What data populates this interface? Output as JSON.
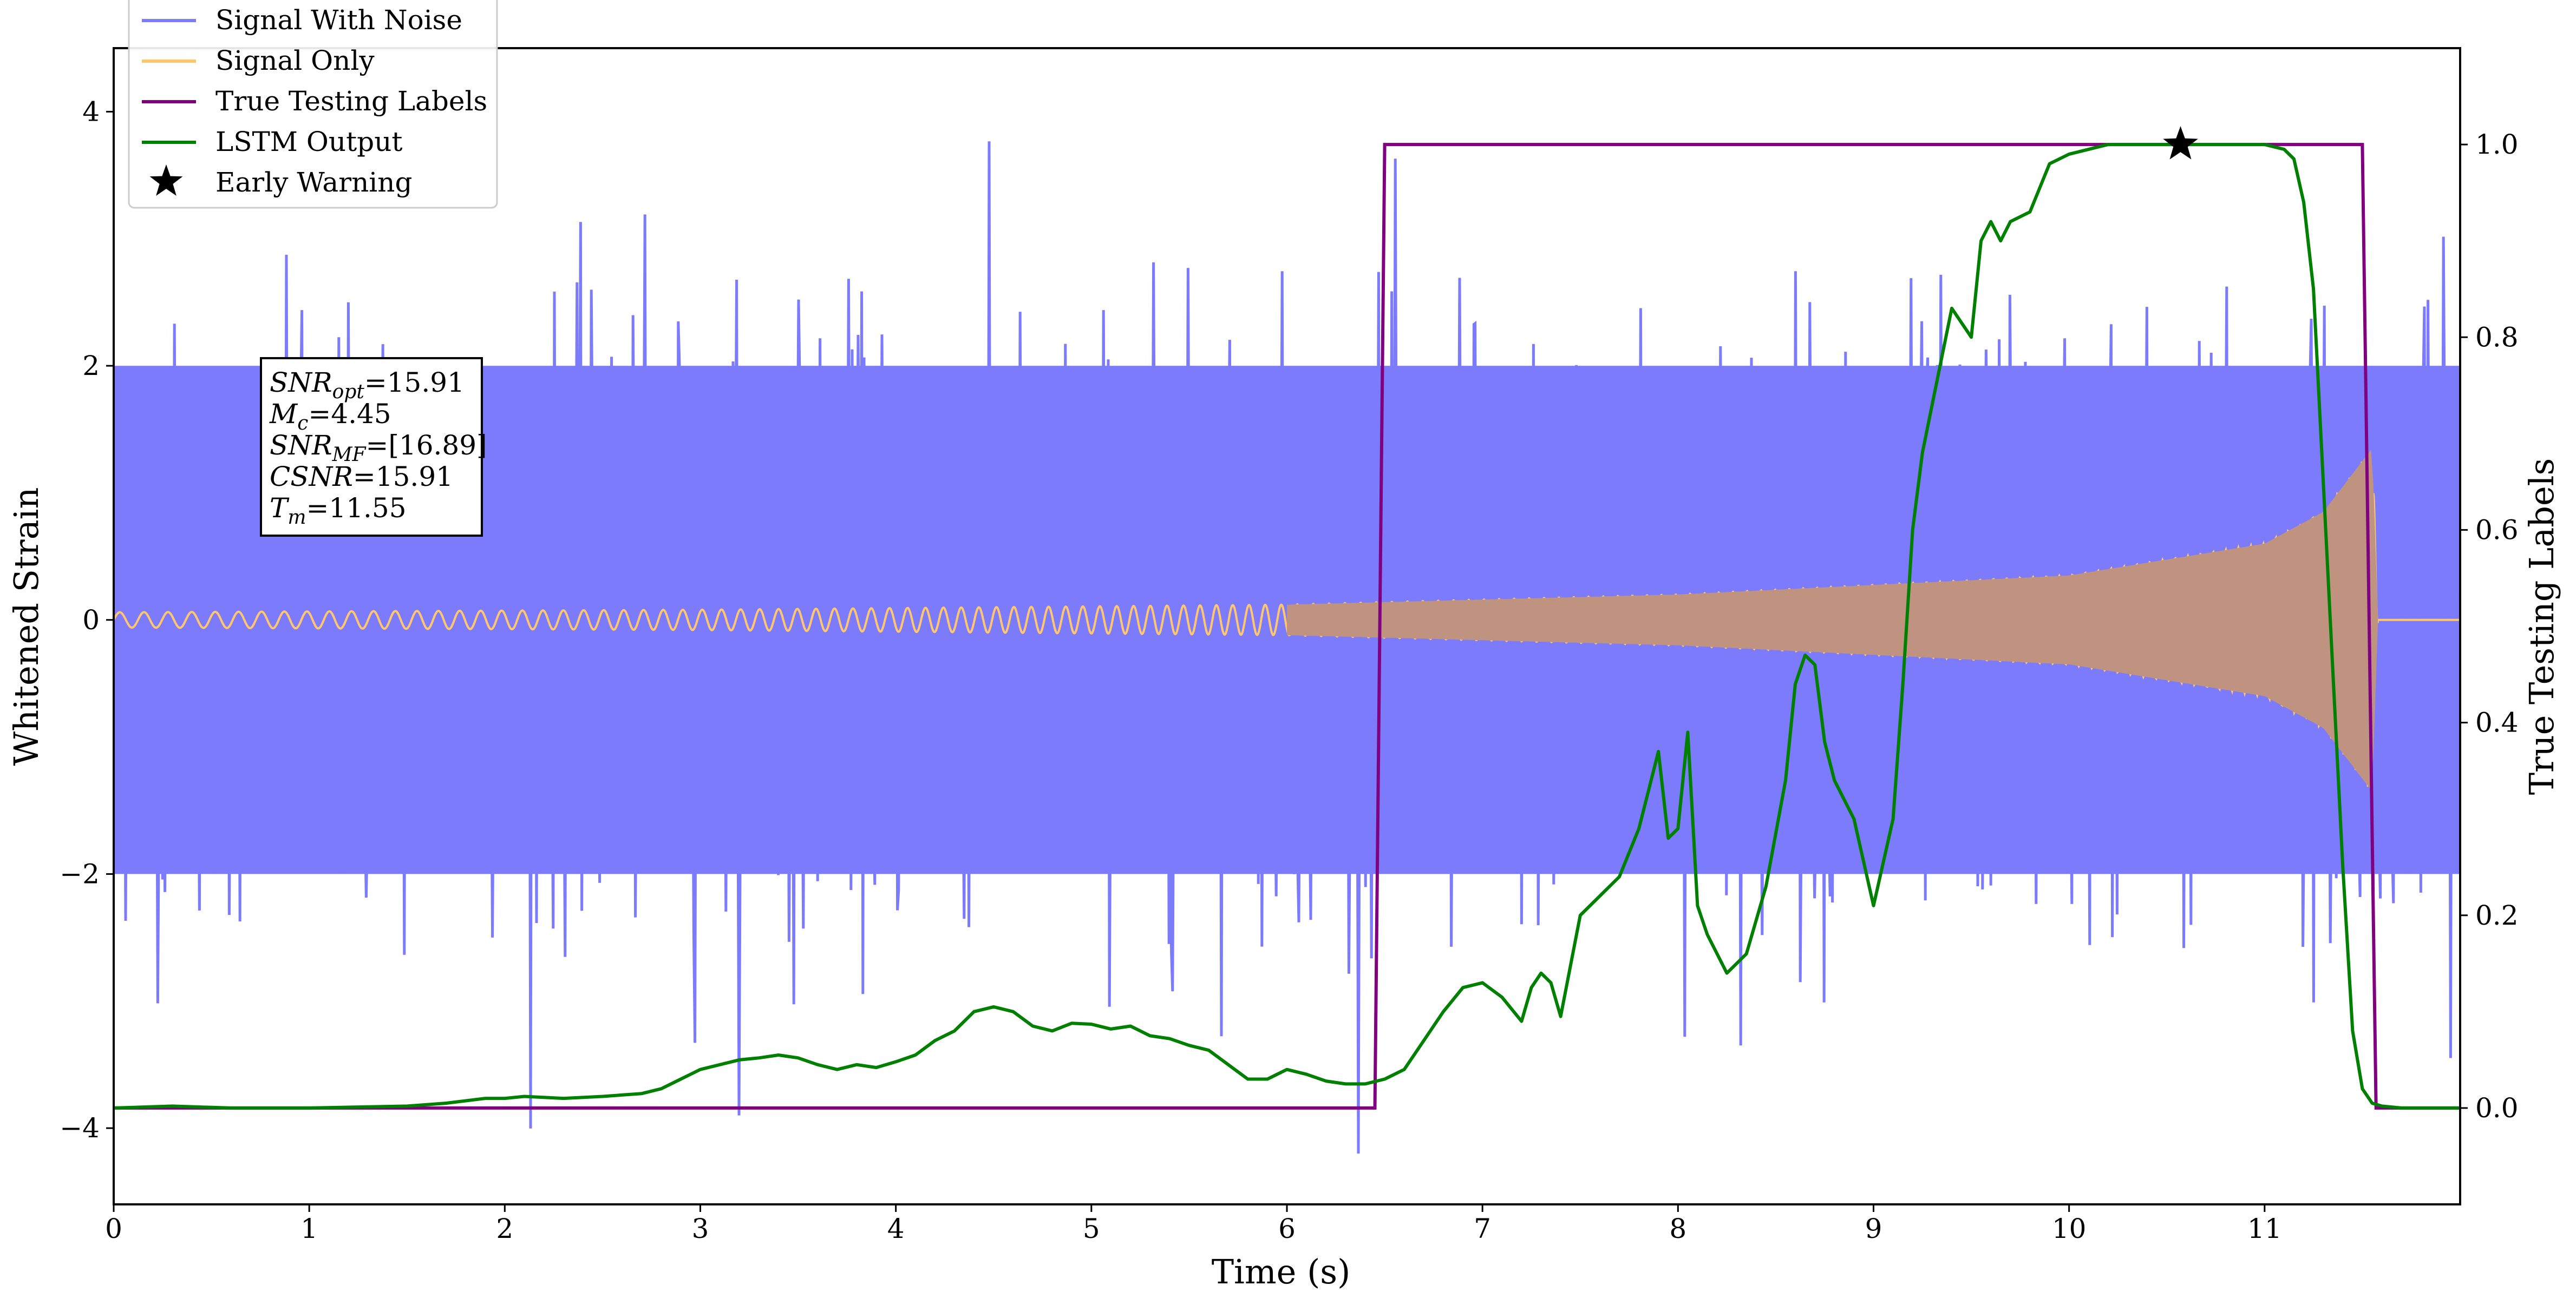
{
  "chart_data": {
    "type": "line",
    "xlabel": "Time (s)",
    "ylabel_left": "Whitened Strain",
    "ylabel_right": "True Testing Labels",
    "xlim": [
      0,
      12
    ],
    "ylim_left": [
      -4.6,
      4.5
    ],
    "ylim_right": [
      -0.1,
      1.1
    ],
    "x_ticks": [
      "0",
      "1",
      "2",
      "3",
      "4",
      "5",
      "6",
      "7",
      "8",
      "9",
      "10",
      "11"
    ],
    "y_ticks_left": [
      "−4",
      "−2",
      "0",
      "2",
      "4"
    ],
    "y_ticks_right": [
      "0.0",
      "0.2",
      "0.4",
      "0.6",
      "0.8",
      "1.0"
    ],
    "legend": {
      "placement": "top-left",
      "entries": [
        {
          "label": "Signal With Noise",
          "color": "#7b7bfb",
          "marker": "line"
        },
        {
          "label": "Signal Only",
          "color": "#ffc66b",
          "marker": "line"
        },
        {
          "label": "True Testing Labels",
          "color": "#800080",
          "marker": "line"
        },
        {
          "label": "LSTM Output",
          "color": "#008000",
          "marker": "line"
        },
        {
          "label": "Early Warning",
          "color": "#000000",
          "marker": "star"
        }
      ]
    },
    "annotation": {
      "lines": [
        {
          "var": "SNR",
          "sub": "opt",
          "value": "=15.91"
        },
        {
          "var": "M",
          "sub": "c",
          "value": "=4.45"
        },
        {
          "var": "SNR",
          "sub": "MF",
          "value": "=[16.89]"
        },
        {
          "var": "CSNR",
          "sub": "",
          "value": "=15.91"
        },
        {
          "var": "T",
          "sub": "m",
          "value": "=11.55"
        }
      ]
    },
    "series": [
      {
        "name": "Signal With Noise",
        "axis": "left",
        "style": "dense noise band",
        "color": "#7b7bfb",
        "approx_envelope": [
          -2.0,
          2.0
        ],
        "approx_extremes": [
          -4.2,
          4.1
        ]
      },
      {
        "name": "Signal Only",
        "axis": "left",
        "style": "chirp",
        "color": "#ffc66b",
        "amplitude_points": [
          [
            0,
            0.06
          ],
          [
            3,
            0.08
          ],
          [
            6,
            0.12
          ],
          [
            8,
            0.2
          ],
          [
            10,
            0.35
          ],
          [
            11,
            0.6
          ],
          [
            11.3,
            0.85
          ],
          [
            11.55,
            1.35
          ],
          [
            11.58,
            0.0
          ],
          [
            12,
            0.0
          ]
        ]
      },
      {
        "name": "True Testing Labels",
        "axis": "right",
        "color": "#800080",
        "x": [
          0,
          6.45,
          6.5,
          11.5,
          11.57,
          12
        ],
        "y": [
          0,
          0,
          1,
          1,
          0,
          0
        ]
      },
      {
        "name": "LSTM Output",
        "axis": "right",
        "color": "#008000",
        "x": [
          0,
          0.3,
          0.6,
          1.0,
          1.5,
          1.7,
          1.9,
          2.0,
          2.1,
          2.3,
          2.5,
          2.7,
          2.8,
          2.9,
          3.0,
          3.1,
          3.2,
          3.3,
          3.4,
          3.5,
          3.6,
          3.7,
          3.8,
          3.9,
          4.0,
          4.1,
          4.2,
          4.3,
          4.4,
          4.5,
          4.6,
          4.7,
          4.8,
          4.9,
          5.0,
          5.1,
          5.2,
          5.3,
          5.4,
          5.5,
          5.6,
          5.7,
          5.8,
          5.9,
          6.0,
          6.1,
          6.2,
          6.3,
          6.4,
          6.5,
          6.6,
          6.7,
          6.8,
          6.9,
          7.0,
          7.1,
          7.2,
          7.25,
          7.3,
          7.35,
          7.4,
          7.5,
          7.6,
          7.7,
          7.8,
          7.9,
          7.95,
          8.0,
          8.05,
          8.1,
          8.15,
          8.25,
          8.35,
          8.45,
          8.55,
          8.6,
          8.65,
          8.7,
          8.75,
          8.8,
          8.85,
          8.9,
          9.0,
          9.1,
          9.15,
          9.2,
          9.25,
          9.3,
          9.35,
          9.4,
          9.5,
          9.55,
          9.6,
          9.65,
          9.7,
          9.8,
          9.9,
          10.0,
          10.2,
          10.5,
          10.8,
          11.0,
          11.1,
          11.15,
          11.2,
          11.25,
          11.3,
          11.35,
          11.4,
          11.45,
          11.5,
          11.55,
          11.6,
          11.7,
          11.8,
          12
        ],
        "y": [
          0.0,
          0.002,
          0.0,
          0.0,
          0.002,
          0.005,
          0.01,
          0.01,
          0.012,
          0.01,
          0.012,
          0.015,
          0.02,
          0.03,
          0.04,
          0.045,
          0.05,
          0.052,
          0.055,
          0.052,
          0.045,
          0.04,
          0.045,
          0.042,
          0.048,
          0.055,
          0.07,
          0.08,
          0.1,
          0.105,
          0.1,
          0.085,
          0.08,
          0.088,
          0.087,
          0.082,
          0.085,
          0.075,
          0.072,
          0.065,
          0.06,
          0.045,
          0.03,
          0.03,
          0.04,
          0.035,
          0.028,
          0.025,
          0.025,
          0.03,
          0.04,
          0.07,
          0.1,
          0.125,
          0.13,
          0.115,
          0.09,
          0.125,
          0.14,
          0.13,
          0.095,
          0.2,
          0.22,
          0.24,
          0.29,
          0.37,
          0.28,
          0.29,
          0.39,
          0.21,
          0.18,
          0.14,
          0.16,
          0.23,
          0.34,
          0.44,
          0.47,
          0.46,
          0.38,
          0.34,
          0.32,
          0.3,
          0.21,
          0.3,
          0.44,
          0.6,
          0.68,
          0.73,
          0.78,
          0.83,
          0.8,
          0.9,
          0.92,
          0.9,
          0.92,
          0.93,
          0.98,
          0.99,
          1.0,
          1.0,
          1.0,
          1.0,
          0.995,
          0.985,
          0.94,
          0.85,
          0.65,
          0.45,
          0.25,
          0.08,
          0.02,
          0.005,
          0.002,
          0.0,
          0.0,
          0.0
        ]
      },
      {
        "name": "Early Warning",
        "axis": "right",
        "type": "scatter",
        "marker": "star",
        "color": "#000000",
        "x": [
          10.57
        ],
        "y": [
          1.0
        ]
      }
    ]
  }
}
